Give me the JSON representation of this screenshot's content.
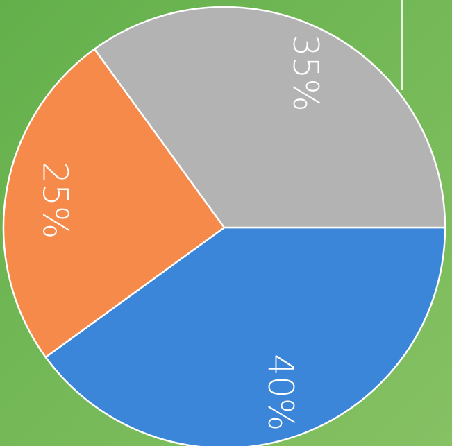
{
  "chart_data": {
    "type": "pie",
    "values": [
      40,
      25,
      35
    ],
    "value_labels": [
      "40%",
      "25%",
      "35%"
    ],
    "colors": [
      "#3b86d8",
      "#f58a4b",
      "#b3b3b3"
    ],
    "start_angle": 0,
    "direction": "clockwise"
  }
}
